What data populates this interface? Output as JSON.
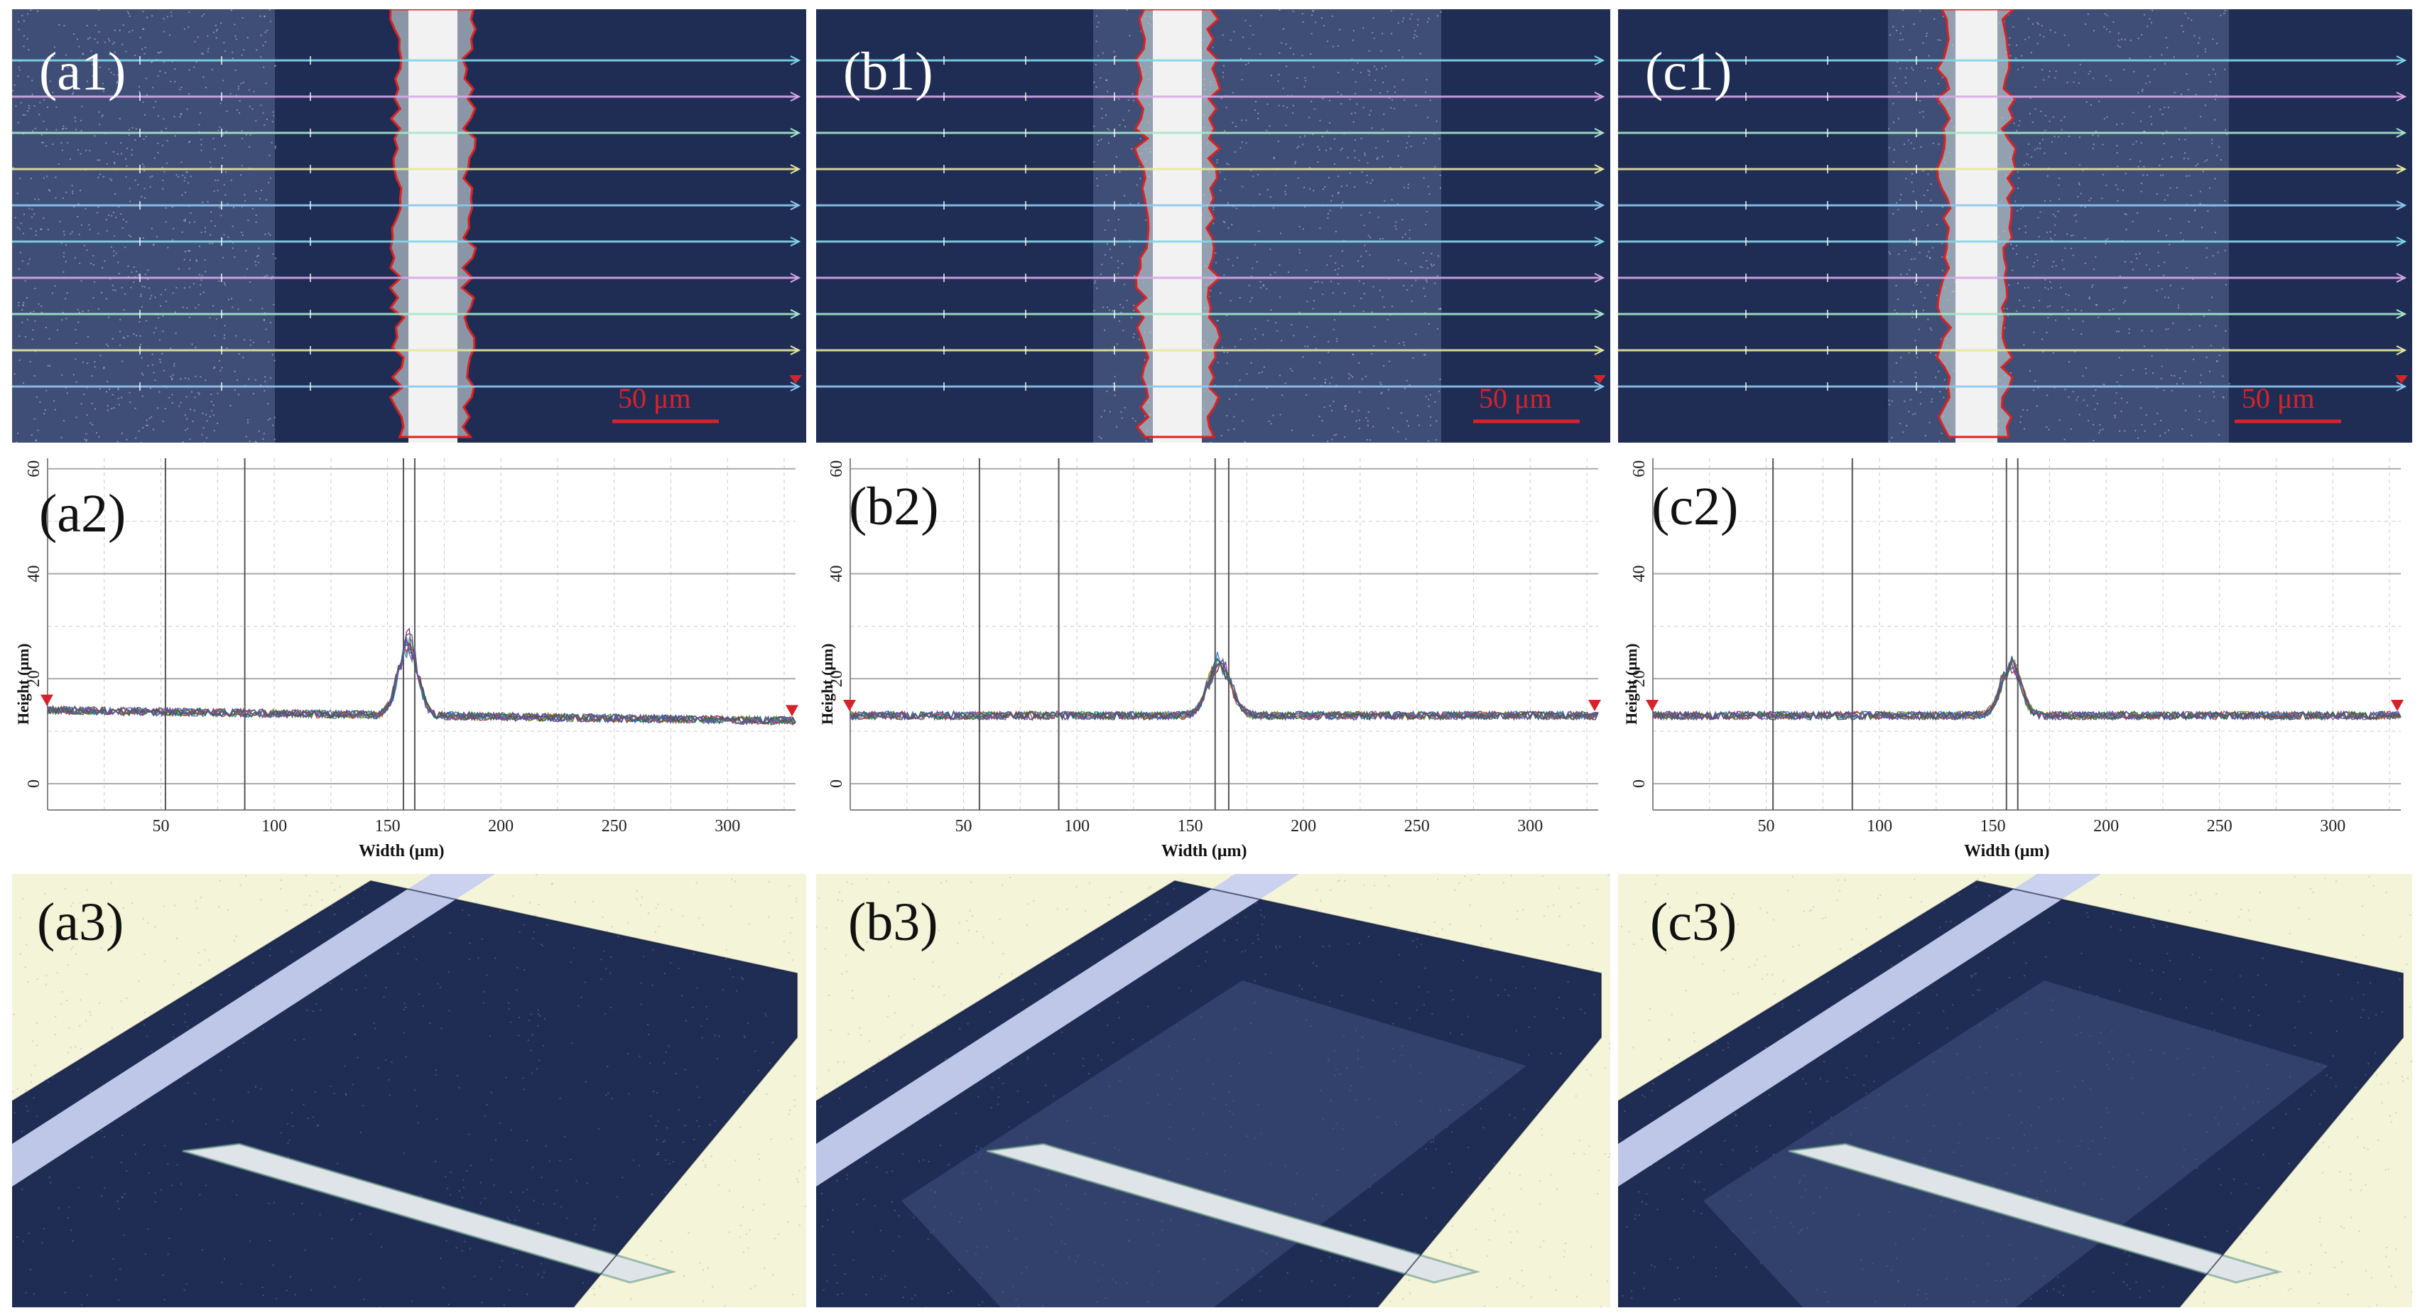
{
  "figure": {
    "columns": [
      {
        "micrograph": {
          "label": "(a1)",
          "scale_bar": "50 μm"
        },
        "profile": {
          "label": "(a2)"
        },
        "render3d": {
          "label": "(a3)"
        }
      },
      {
        "micrograph": {
          "label": "(b1)",
          "scale_bar": "50 μm"
        },
        "profile": {
          "label": "(b2)"
        },
        "render3d": {
          "label": "(b3)"
        }
      },
      {
        "micrograph": {
          "label": "(c1)",
          "scale_bar": "50 μm"
        },
        "profile": {
          "label": "(c2)"
        },
        "render3d": {
          "label": "(c3)"
        }
      }
    ],
    "colors": {
      "substrate": "#1f2d55",
      "texture": "#5a6a92",
      "track": "#f2f2f2",
      "boundary": "#e02020",
      "accent": "#d8222a",
      "scan_lines": [
        "#7fd8e8",
        "#d9a8e8",
        "#a8e8c8",
        "#e8e8a0",
        "#8ec8f0"
      ],
      "render_background": "#f4f4d8",
      "render_band": "#c8d0f0"
    }
  },
  "chart_data": [
    {
      "type": "line",
      "panel": "(a2)",
      "xlabel": "Width (μm)",
      "ylabel": "Height (μm)",
      "xlim": [
        0,
        330
      ],
      "ylim": [
        -5,
        62
      ],
      "xticks": [
        50,
        100,
        150,
        200,
        250,
        300
      ],
      "yticks": [
        0,
        20,
        40,
        60
      ],
      "markers_x": [
        52,
        87,
        157,
        162
      ],
      "baseline_left": 14,
      "baseline_right": 12,
      "peak_center": 159,
      "peak_height": 27,
      "peak_halfwidth": 6,
      "series_count": 9
    },
    {
      "type": "line",
      "panel": "(b2)",
      "xlabel": "Width (μm)",
      "ylabel": "Height (μm)",
      "xlim": [
        0,
        330
      ],
      "ylim": [
        -5,
        62
      ],
      "xticks": [
        50,
        100,
        150,
        200,
        250,
        300
      ],
      "yticks": [
        0,
        20,
        40,
        60
      ],
      "markers_x": [
        57,
        92,
        161,
        167
      ],
      "baseline_left": 13,
      "baseline_right": 13,
      "peak_center": 163,
      "peak_height": 23,
      "peak_halfwidth": 7,
      "series_count": 9
    },
    {
      "type": "line",
      "panel": "(c2)",
      "xlabel": "Width (μm)",
      "ylabel": "Height (μm)",
      "xlim": [
        0,
        330
      ],
      "ylim": [
        -5,
        62
      ],
      "xticks": [
        50,
        100,
        150,
        200,
        250,
        300
      ],
      "yticks": [
        0,
        20,
        40,
        60
      ],
      "markers_x": [
        53,
        88,
        156,
        161
      ],
      "baseline_left": 13,
      "baseline_right": 13,
      "peak_center": 158,
      "peak_height": 23,
      "peak_halfwidth": 6,
      "series_count": 9
    }
  ]
}
